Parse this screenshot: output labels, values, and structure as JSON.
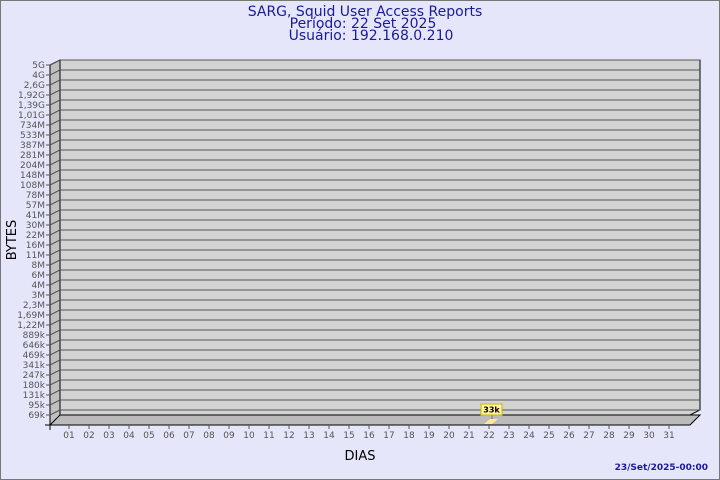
{
  "chart_data": {
    "type": "bar",
    "title": "SARG, Squid User Access Reports",
    "subtitle_period": "Período: 22 Set 2025",
    "subtitle_user": "Usuário: 192.168.0.210",
    "xlabel": "DIAS",
    "ylabel": "BYTES",
    "y_scale": "log",
    "y_ticks": [
      "5G",
      "4G",
      "2,6G",
      "1,92G",
      "1,39G",
      "1,01G",
      "734M",
      "533M",
      "387M",
      "281M",
      "204M",
      "148M",
      "108M",
      "78M",
      "57M",
      "41M",
      "30M",
      "22M",
      "16M",
      "11M",
      "8M",
      "6M",
      "4M",
      "3M",
      "2,3M",
      "1,69M",
      "1,22M",
      "889k",
      "646k",
      "469k",
      "341k",
      "247k",
      "180k",
      "131k",
      "95k",
      "69k"
    ],
    "categories": [
      "01",
      "02",
      "03",
      "04",
      "05",
      "06",
      "07",
      "08",
      "09",
      "10",
      "11",
      "12",
      "13",
      "14",
      "15",
      "16",
      "17",
      "18",
      "19",
      "20",
      "21",
      "22",
      "23",
      "24",
      "25",
      "26",
      "27",
      "28",
      "29",
      "30",
      "31"
    ],
    "values": [
      null,
      null,
      null,
      null,
      null,
      null,
      null,
      null,
      null,
      null,
      null,
      null,
      null,
      null,
      null,
      null,
      null,
      null,
      null,
      null,
      null,
      33000,
      null,
      null,
      null,
      null,
      null,
      null,
      null,
      null,
      null
    ],
    "data_labels": {
      "22": "33k"
    },
    "grid": true,
    "colors": {
      "background": "#e6e6fa",
      "wall": "#d3d3d3",
      "bar": "#ffe89a",
      "label_box": "#fff3a0",
      "title": "#1a1a9a"
    }
  },
  "footer": {
    "timestamp": "23/Set/2025-00:00"
  }
}
